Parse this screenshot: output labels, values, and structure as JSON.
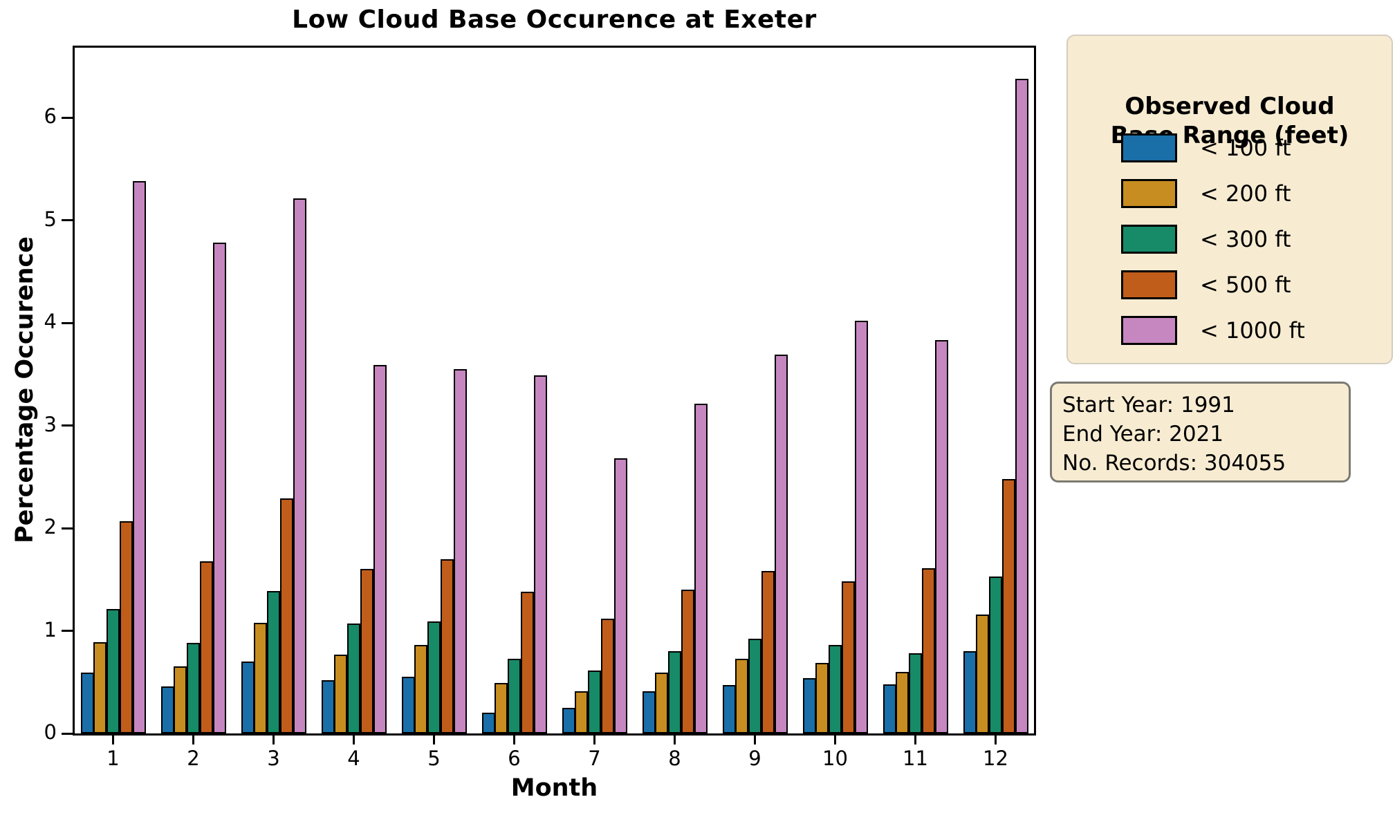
{
  "title": "Low Cloud Base Occurence at Exeter",
  "axes": {
    "x_label": "Month",
    "y_label": "Percentage Occurence",
    "x_tick_labels": [
      "1",
      "2",
      "3",
      "4",
      "5",
      "6",
      "7",
      "8",
      "9",
      "10",
      "11",
      "12"
    ],
    "y_tick_labels": [
      "0",
      "1",
      "2",
      "3",
      "4",
      "5",
      "6"
    ],
    "y_tick_values": [
      0,
      1,
      2,
      3,
      4,
      5,
      6
    ]
  },
  "legend": {
    "title_line1": "Observed Cloud",
    "title_line2": "Base Range (feet)",
    "items": [
      {
        "label": "< 100 ft",
        "color": "#1a6fa8"
      },
      {
        "label": "< 200 ft",
        "color": "#c88d20"
      },
      {
        "label": "< 300 ft",
        "color": "#178a68"
      },
      {
        "label": "< 500 ft",
        "color": "#c05d1b"
      },
      {
        "label": "< 1000 ft",
        "color": "#c687c0"
      }
    ]
  },
  "info_box": {
    "lines": [
      "Start Year: 1991",
      "End Year: 2021",
      "No. Records: 304055"
    ]
  },
  "chart_data": {
    "type": "bar",
    "grouped": true,
    "title": "Low Cloud Base Occurence at Exeter",
    "xlabel": "Month",
    "ylabel": "Percentage Occurence",
    "categories": [
      1,
      2,
      3,
      4,
      5,
      6,
      7,
      8,
      9,
      10,
      11,
      12
    ],
    "ylim": [
      0,
      6.69
    ],
    "grid": false,
    "legend_position": "outside-right",
    "bar_edge_color": "#000000",
    "series": [
      {
        "name": "< 100 ft",
        "color": "#1a6fa8",
        "values": [
          0.59,
          0.46,
          0.7,
          0.52,
          0.55,
          0.2,
          0.25,
          0.41,
          0.47,
          0.54,
          0.48,
          0.8
        ]
      },
      {
        "name": "< 200 ft",
        "color": "#c88d20",
        "values": [
          0.89,
          0.65,
          1.08,
          0.77,
          0.86,
          0.49,
          0.41,
          0.59,
          0.73,
          0.69,
          0.6,
          1.16
        ]
      },
      {
        "name": "< 300 ft",
        "color": "#178a68",
        "values": [
          1.21,
          0.88,
          1.39,
          1.07,
          1.09,
          0.73,
          0.61,
          0.8,
          0.92,
          0.86,
          0.78,
          1.53
        ]
      },
      {
        "name": "< 500 ft",
        "color": "#c05d1b",
        "values": [
          2.07,
          1.68,
          2.29,
          1.6,
          1.7,
          1.38,
          1.12,
          1.4,
          1.58,
          1.48,
          1.61,
          2.48
        ]
      },
      {
        "name": "< 1000 ft",
        "color": "#c687c0",
        "values": [
          5.38,
          4.78,
          5.21,
          3.59,
          3.55,
          3.49,
          2.68,
          3.21,
          3.69,
          4.02,
          3.83,
          6.38
        ]
      }
    ],
    "annotations": [
      "Start Year: 1991",
      "End Year: 2021",
      "No. Records: 304055"
    ]
  }
}
